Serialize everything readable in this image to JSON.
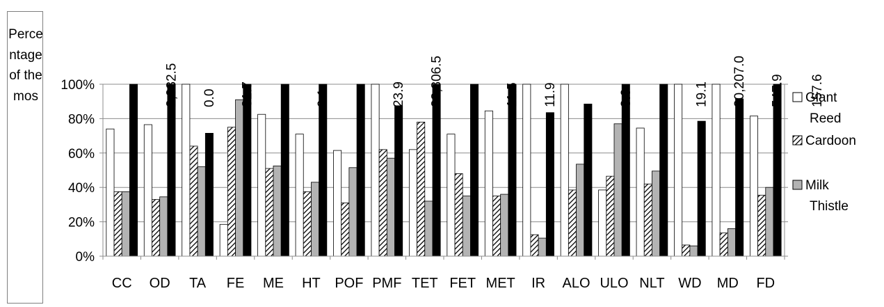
{
  "chart_data": {
    "type": "bar",
    "ylabel": "Percentage of the mos",
    "ylim": [
      0,
      100
    ],
    "y_ticks": [
      "0%",
      "20%",
      "40%",
      "60%",
      "80%",
      "100%"
    ],
    "grid": true,
    "legend_position": "right",
    "categories": [
      "CC",
      "OD",
      "TA",
      "FE",
      "ME",
      "HT",
      "POF",
      "PMF",
      "TET",
      "FET",
      "MET",
      "IR",
      "ALO",
      "ULO",
      "NLT",
      "WD",
      "MD",
      "FD"
    ],
    "series": [
      {
        "name": "Giant Reed",
        "color": "#ffffff",
        "pattern": "none",
        "values": [
          74,
          76.5,
          100,
          18.5,
          82.5,
          71,
          61.5,
          100,
          62,
          71,
          84.5,
          100,
          100,
          38.5,
          74.5,
          100,
          100,
          81.5
        ]
      },
      {
        "name": "Cardoon",
        "color": "#ffffff",
        "pattern": "diagonal-hatch",
        "values": [
          37.5,
          33,
          64,
          75,
          51,
          37.5,
          31,
          62,
          78,
          48,
          35,
          12.5,
          38.5,
          46.5,
          42,
          6.5,
          13.5,
          35.5
        ]
      },
      {
        "name": "Milk Thistle",
        "color": "#b3b3b3",
        "pattern": "none",
        "values": [
          37.5,
          34.5,
          52,
          91,
          52.5,
          43,
          51.5,
          57,
          32,
          35,
          36,
          10.5,
          53.5,
          77,
          49.5,
          6,
          16,
          40
        ]
      },
      {
        "name": "",
        "color": "#000000",
        "pattern": "none",
        "values": [
          100,
          100,
          71.5,
          100,
          100,
          100,
          100,
          87.5,
          100,
          100,
          100,
          83.5,
          88.5,
          100,
          100,
          78.5,
          91.5,
          100
        ]
      }
    ],
    "value_labels": [
      "",
      "2,032.5",
      "0.0",
      "81.7",
      "",
      "9.1",
      "",
      "23.9",
      "23,806.5",
      "",
      "11.5",
      "11.9",
      "",
      "3.0",
      "",
      "19.1",
      "20,207.0",
      "547.9"
    ],
    "extra_label": "157.6"
  }
}
